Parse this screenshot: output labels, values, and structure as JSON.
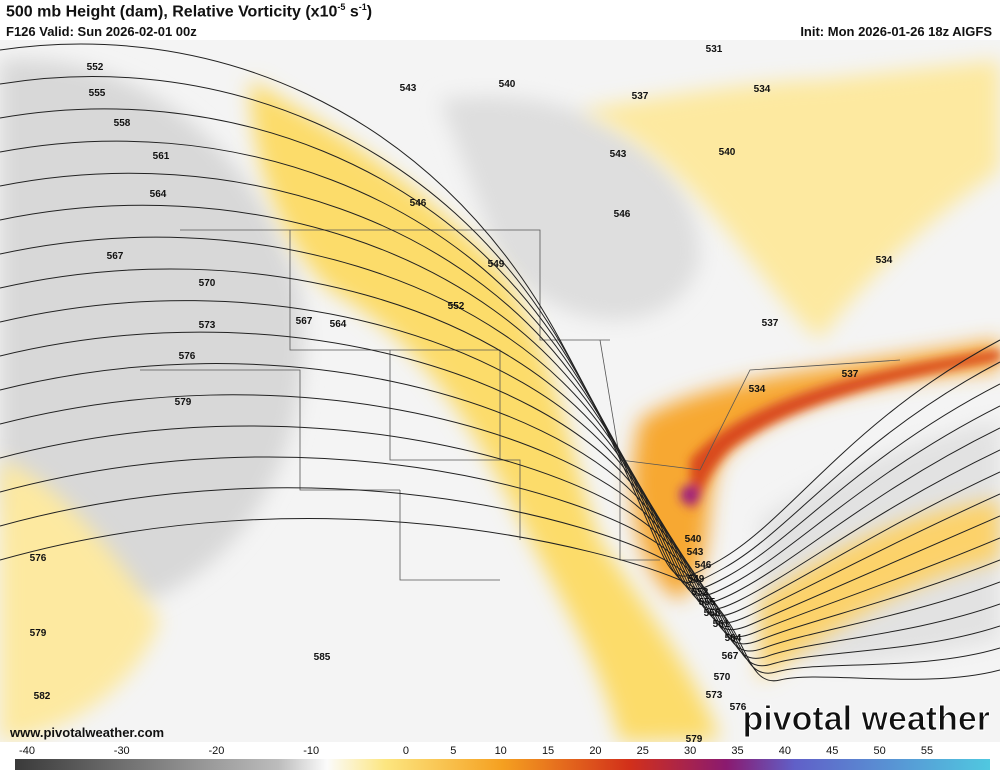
{
  "header": {
    "title": "500 mb Height (dam), Relative Vorticity (x10",
    "title_exp": "-5",
    "title_unit": " s",
    "title_unit_exp": "-1",
    "title_end": ")",
    "valid": "F126 Valid: Sun 2026-02-01 00z",
    "init": "Init: Mon 2026-01-26 18z AIGFS"
  },
  "map": {
    "contour_labels": [
      552,
      555,
      558,
      561,
      564,
      567,
      570,
      573,
      576,
      579,
      567,
      564,
      576,
      579,
      582,
      585,
      531,
      534,
      540,
      543,
      537,
      543,
      540,
      546,
      546,
      549,
      552,
      534,
      537,
      537,
      534,
      540,
      543,
      546,
      549,
      552,
      555,
      558,
      561,
      564,
      567,
      570,
      573,
      576,
      579
    ]
  },
  "footer": {
    "website": "www.pivotalweather.com",
    "logo": "pivotal weather"
  },
  "colorbar": {
    "ticks": [
      -40,
      -30,
      -20,
      -10,
      0,
      5,
      10,
      15,
      20,
      25,
      30,
      35,
      40,
      45,
      50,
      55
    ]
  }
}
